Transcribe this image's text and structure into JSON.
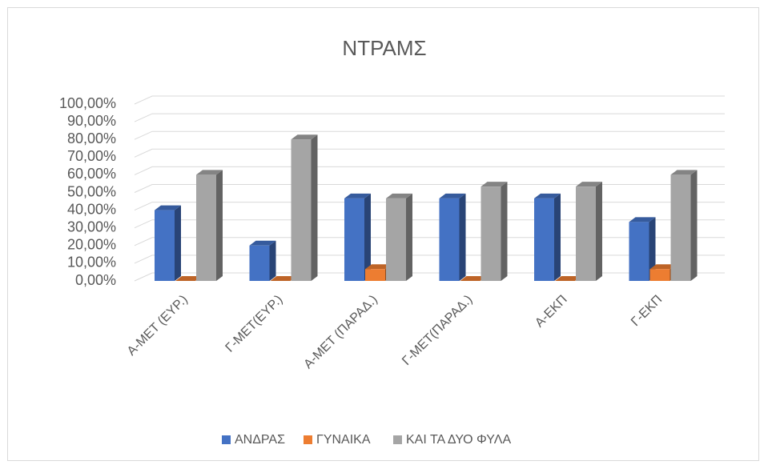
{
  "chart_data": {
    "type": "bar3d",
    "title": "ΝΤΡΑΜΣ",
    "categories": [
      "Α-ΜΕΤ (ΕΥΡ.)",
      "Γ-ΜΕΤ(ΕΥΡ.)",
      "Α-ΜΕΤ (ΠΑΡΑΔ.)",
      "Γ-ΜΕΤ(ΠΑΡΑΔ.)",
      "Α-ΕΚΠ",
      "Γ-ΕΚΠ"
    ],
    "series": [
      {
        "name": "ΑΝΔΡΑΣ",
        "color": "#4472c4",
        "values": [
          40,
          20,
          46.67,
          46.67,
          46.67,
          33.33
        ]
      },
      {
        "name": "ΓΥΝΑΙΚΑ",
        "color": "#ed7d31",
        "values": [
          0,
          0,
          6.67,
          0,
          0,
          6.67
        ]
      },
      {
        "name": "ΚΑΙ ΤΑ ΔΥΟ ΦΥΛΑ",
        "color": "#a5a5a5",
        "values": [
          60,
          80,
          46.67,
          53.33,
          53.33,
          60
        ]
      }
    ],
    "ylim": [
      0,
      100
    ],
    "yticks": [
      {
        "value": 0,
        "label": "0,00%"
      },
      {
        "value": 10,
        "label": "10,00%"
      },
      {
        "value": 20,
        "label": "20,00%"
      },
      {
        "value": 30,
        "label": "30,00%"
      },
      {
        "value": 40,
        "label": "40,00%"
      },
      {
        "value": 50,
        "label": "50,00%"
      },
      {
        "value": 60,
        "label": "60,00%"
      },
      {
        "value": 70,
        "label": "70,00%"
      },
      {
        "value": 80,
        "label": "80,00%"
      },
      {
        "value": 90,
        "label": "90,00%"
      },
      {
        "value": 100,
        "label": "100,00%"
      }
    ],
    "grid": true,
    "legend": "bottom"
  }
}
